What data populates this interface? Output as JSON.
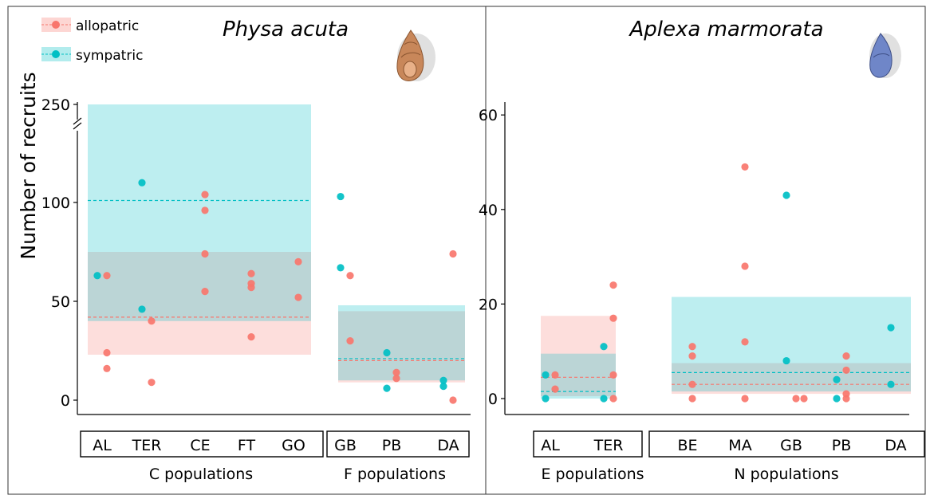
{
  "figure": {
    "ylabel": "Number of recruits",
    "legend": [
      {
        "label": "allopatric",
        "color": "#f8766d"
      },
      {
        "label": "sympatric",
        "color": "#00bfc4"
      }
    ]
  },
  "chart_data": [
    {
      "type": "scatter",
      "title": "Physa acuta",
      "snail_icon": "brown-snail-shell-icon",
      "ylabel": "Number of recruits",
      "y_axis": "broken: 0–125 linear, then jump to 250",
      "yticks": [
        0,
        50,
        100,
        250
      ],
      "ylim": [
        0,
        250
      ],
      "groups": [
        {
          "label": "C populations",
          "categories": [
            "AL",
            "TER",
            "CE",
            "FT",
            "GO"
          ]
        },
        {
          "label": "F populations",
          "categories": [
            "GB",
            "PB",
            "DA"
          ]
        }
      ],
      "series": [
        {
          "name": "allopatric",
          "color": "#f8766d",
          "points": [
            {
              "x": "AL",
              "y": 63
            },
            {
              "x": "AL",
              "y": 24
            },
            {
              "x": "AL",
              "y": 16
            },
            {
              "x": "TER",
              "y": 40
            },
            {
              "x": "TER",
              "y": 9
            },
            {
              "x": "CE",
              "y": 104
            },
            {
              "x": "CE",
              "y": 96
            },
            {
              "x": "CE",
              "y": 74
            },
            {
              "x": "CE",
              "y": 55
            },
            {
              "x": "FT",
              "y": 64
            },
            {
              "x": "FT",
              "y": 59
            },
            {
              "x": "FT",
              "y": 57
            },
            {
              "x": "FT",
              "y": 32
            },
            {
              "x": "GO",
              "y": 70
            },
            {
              "x": "GO",
              "y": 52
            },
            {
              "x": "GB",
              "y": 63
            },
            {
              "x": "GB",
              "y": 30
            },
            {
              "x": "PB",
              "y": 14
            },
            {
              "x": "PB",
              "y": 11
            },
            {
              "x": "DA",
              "y": 74
            },
            {
              "x": "DA",
              "y": 0
            }
          ],
          "group_ranges": [
            {
              "group": "C populations",
              "low": 23,
              "high": 75,
              "mean": 42
            },
            {
              "group": "F populations",
              "low": 9,
              "high": 45,
              "mean": 20
            }
          ]
        },
        {
          "name": "sympatric",
          "color": "#00bfc4",
          "points": [
            {
              "x": "AL",
              "y": 63
            },
            {
              "x": "TER",
              "y": 110
            },
            {
              "x": "TER",
              "y": 46
            },
            {
              "x": "GB",
              "y": 103
            },
            {
              "x": "GB",
              "y": 67
            },
            {
              "x": "PB",
              "y": 24
            },
            {
              "x": "PB",
              "y": 6
            },
            {
              "x": "DA",
              "y": 10
            },
            {
              "x": "DA",
              "y": 7
            }
          ],
          "group_ranges": [
            {
              "group": "C populations",
              "low": 40,
              "high": 250,
              "mean": 101
            },
            {
              "group": "F populations",
              "low": 10,
              "high": 48,
              "mean": 21
            }
          ]
        }
      ]
    },
    {
      "type": "scatter",
      "title": "Aplexa marmorata",
      "snail_icon": "blue-snail-shell-icon",
      "yticks": [
        0,
        20,
        40,
        60
      ],
      "ylim": [
        0,
        62
      ],
      "groups": [
        {
          "label": "E populations",
          "categories": [
            "AL",
            "TER"
          ]
        },
        {
          "label": "N populations",
          "categories": [
            "BE",
            "MA",
            "GB",
            "PB",
            "DA"
          ]
        }
      ],
      "series": [
        {
          "name": "allopatric",
          "color": "#f8766d",
          "points": [
            {
              "x": "AL",
              "y": 5
            },
            {
              "x": "AL",
              "y": 2
            },
            {
              "x": "TER",
              "y": 24
            },
            {
              "x": "TER",
              "y": 17
            },
            {
              "x": "TER",
              "y": 5
            },
            {
              "x": "TER",
              "y": 0
            },
            {
              "x": "BE",
              "y": 11
            },
            {
              "x": "BE",
              "y": 9
            },
            {
              "x": "BE",
              "y": 3
            },
            {
              "x": "BE",
              "y": 0
            },
            {
              "x": "MA",
              "y": 49
            },
            {
              "x": "MA",
              "y": 28
            },
            {
              "x": "MA",
              "y": 12
            },
            {
              "x": "MA",
              "y": 0
            },
            {
              "x": "GB",
              "y": 0
            },
            {
              "x": "GB",
              "y": 0
            },
            {
              "x": "PB",
              "y": 9
            },
            {
              "x": "PB",
              "y": 6
            },
            {
              "x": "PB",
              "y": 1
            },
            {
              "x": "PB",
              "y": 0
            }
          ],
          "group_ranges": [
            {
              "group": "E populations",
              "low": 0.5,
              "high": 17.5,
              "mean": 4.5
            },
            {
              "group": "N populations",
              "low": 1,
              "high": 7.5,
              "mean": 3
            }
          ]
        },
        {
          "name": "sympatric",
          "color": "#00bfc4",
          "points": [
            {
              "x": "AL",
              "y": 5
            },
            {
              "x": "AL",
              "y": 0
            },
            {
              "x": "TER",
              "y": 11
            },
            {
              "x": "TER",
              "y": 0
            },
            {
              "x": "GB",
              "y": 43
            },
            {
              "x": "GB",
              "y": 8
            },
            {
              "x": "PB",
              "y": 4
            },
            {
              "x": "PB",
              "y": 0
            },
            {
              "x": "DA",
              "y": 15
            },
            {
              "x": "DA",
              "y": 3
            }
          ],
          "group_ranges": [
            {
              "group": "E populations",
              "low": 0,
              "high": 9.5,
              "mean": 1.5
            },
            {
              "group": "N populations",
              "low": 1.5,
              "high": 21.5,
              "mean": 5.5
            }
          ]
        }
      ]
    }
  ]
}
